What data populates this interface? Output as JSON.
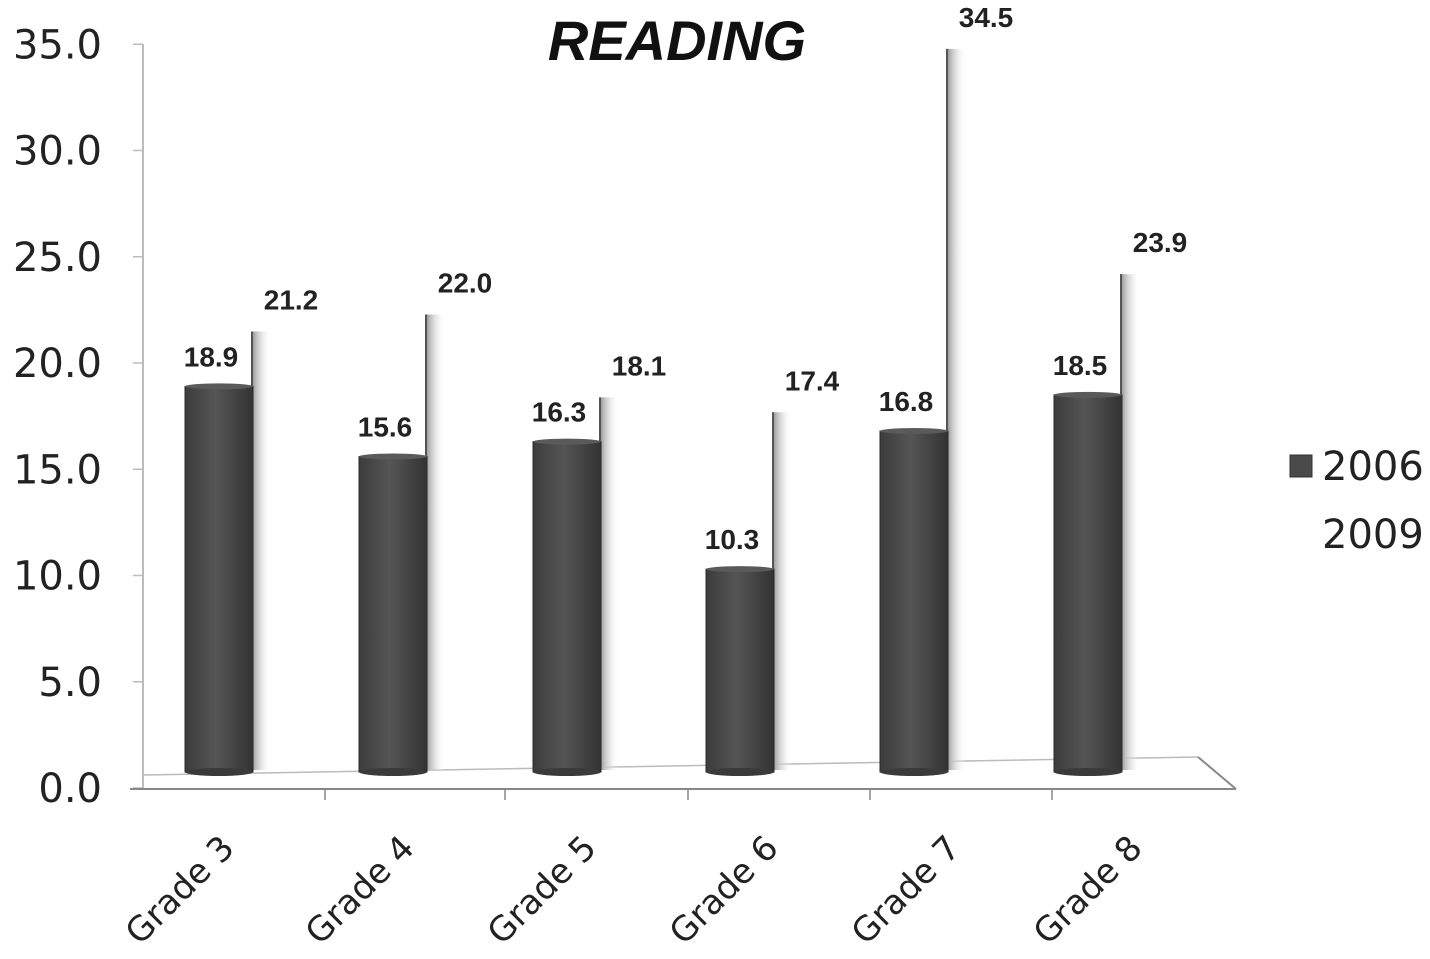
{
  "chart_data": {
    "type": "bar",
    "title": "READING",
    "categories": [
      "Grade 3",
      "Grade 4",
      "Grade 5",
      "Grade 6",
      "Grade 7",
      "Grade 8"
    ],
    "series": [
      {
        "name": "2006",
        "values": [
          18.9,
          15.6,
          16.3,
          10.3,
          16.8,
          18.5
        ],
        "color": "#4a4a4a"
      },
      {
        "name": "2009",
        "values": [
          21.2,
          22.0,
          18.1,
          17.4,
          34.5,
          23.9
        ],
        "color": "#d8d8d8"
      }
    ],
    "value_labels": {
      "2006": [
        "18.9",
        "15.6",
        "16.3",
        "10.3",
        "16.8",
        "18.5"
      ],
      "2009": [
        "21.2",
        "22.0",
        "18.1",
        "17.4",
        "34.5",
        "23.9"
      ]
    },
    "y_ticks": [
      "0.0",
      "5.0",
      "10.0",
      "15.0",
      "20.0",
      "25.0",
      "30.0",
      "35.0"
    ],
    "ylim": [
      0,
      35
    ],
    "xlabel": "",
    "ylabel": "",
    "legend_position": "right",
    "grid": false
  }
}
